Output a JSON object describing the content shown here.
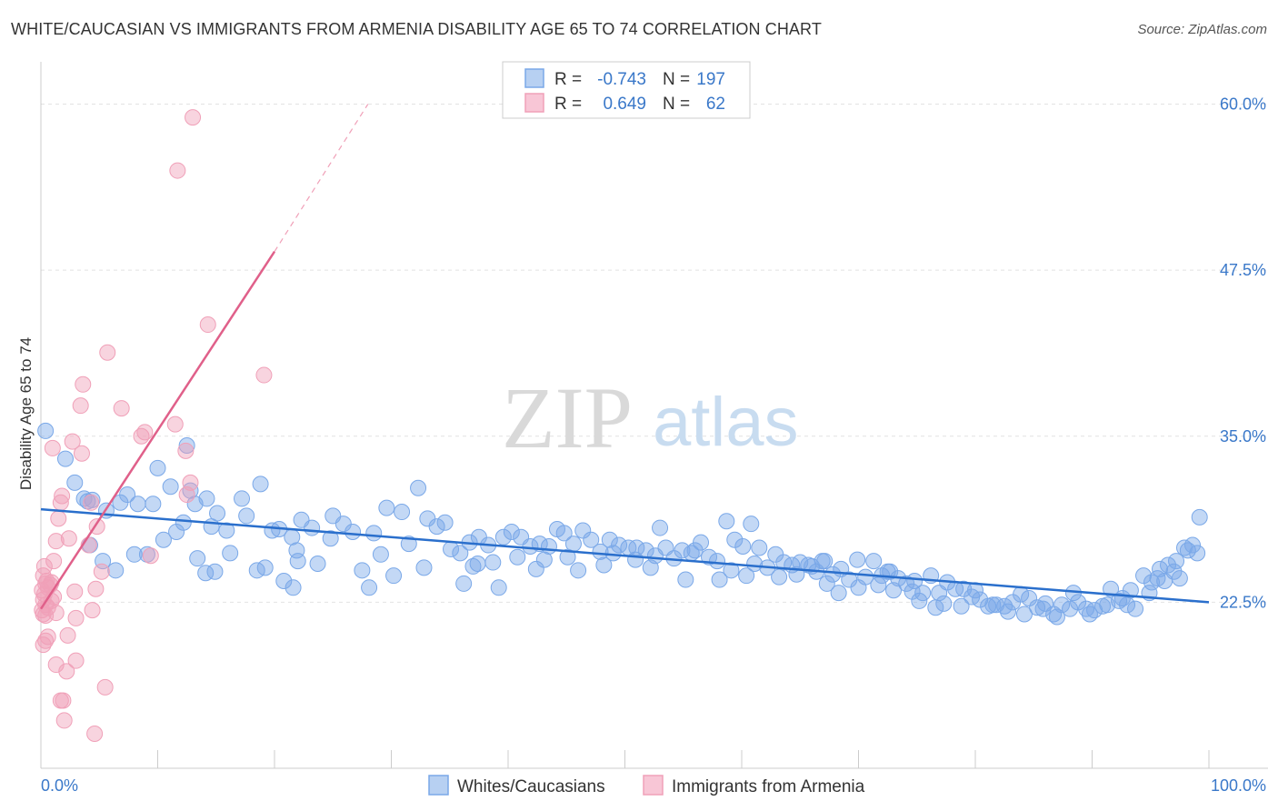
{
  "header": {
    "title": "WHITE/CAUCASIAN VS IMMIGRANTS FROM ARMENIA DISABILITY AGE 65 TO 74 CORRELATION CHART",
    "source": "Source: ZipAtlas.com"
  },
  "watermark": {
    "zip": "ZIP",
    "atlas": "atlas"
  },
  "stats": {
    "r_label": "R =",
    "n_label": "N =",
    "rows": [
      {
        "series": "Whites/Caucasians",
        "r": "-0.743",
        "n": "197",
        "color": "#7aa8e8"
      },
      {
        "series": "Immigrants from Armenia",
        "r": "0.649",
        "n": "62",
        "color": "#f0a0b8"
      }
    ]
  },
  "chart_data": {
    "type": "scatter",
    "title": "WHITE/CAUCASIAN VS IMMIGRANTS FROM ARMENIA DISABILITY AGE 65 TO 74 CORRELATION CHART",
    "xlabel": "",
    "ylabel": "Disability Age 65 to 74",
    "xlim": [
      0,
      100
    ],
    "ylim": [
      10,
      62.5
    ],
    "x_tick_labels": [
      "0.0%",
      "100.0%"
    ],
    "y_ticks": [
      22.5,
      35.0,
      47.5,
      60.0
    ],
    "y_tick_labels": [
      "22.5%",
      "35.0%",
      "47.5%",
      "60.0%"
    ],
    "grid": true,
    "legend_position": "bottom",
    "series": [
      {
        "name": "Whites/Caucasians",
        "color": "#7aa8e8",
        "line_color": "#2a6fcc",
        "trend": {
          "x": [
            0,
            100
          ],
          "y": [
            29.5,
            22.5
          ]
        },
        "points": [
          [
            0.4,
            35.4
          ],
          [
            2.1,
            33.3
          ],
          [
            2.9,
            31.5
          ],
          [
            3.7,
            30.3
          ],
          [
            4.4,
            30.2
          ],
          [
            4.0,
            30.1
          ],
          [
            5.6,
            29.4
          ],
          [
            6.8,
            30.0
          ],
          [
            7.4,
            30.6
          ],
          [
            8.3,
            29.9
          ],
          [
            9.6,
            29.9
          ],
          [
            9.1,
            26.1
          ],
          [
            10.0,
            32.6
          ],
          [
            10.5,
            27.2
          ],
          [
            11.1,
            31.2
          ],
          [
            11.6,
            27.8
          ],
          [
            12.2,
            28.5
          ],
          [
            12.5,
            34.3
          ],
          [
            12.8,
            30.9
          ],
          [
            13.2,
            29.9
          ],
          [
            4.2,
            26.8
          ],
          [
            5.3,
            25.6
          ],
          [
            6.4,
            24.9
          ],
          [
            8.0,
            26.1
          ],
          [
            13.4,
            25.8
          ],
          [
            14.2,
            30.3
          ],
          [
            14.6,
            28.2
          ],
          [
            15.1,
            29.2
          ],
          [
            15.9,
            27.9
          ],
          [
            16.2,
            26.2
          ],
          [
            17.2,
            30.3
          ],
          [
            17.6,
            29.0
          ],
          [
            18.5,
            24.9
          ],
          [
            18.8,
            31.4
          ],
          [
            19.2,
            25.1
          ],
          [
            19.8,
            27.9
          ],
          [
            20.4,
            28.0
          ],
          [
            21.5,
            27.4
          ],
          [
            21.9,
            26.4
          ],
          [
            22.3,
            28.7
          ],
          [
            23.2,
            28.1
          ],
          [
            23.7,
            25.4
          ],
          [
            24.8,
            27.3
          ],
          [
            25.0,
            29.0
          ],
          [
            25.9,
            28.4
          ],
          [
            26.7,
            27.8
          ],
          [
            27.5,
            24.9
          ],
          [
            28.1,
            23.6
          ],
          [
            28.5,
            27.7
          ],
          [
            29.1,
            26.1
          ],
          [
            14.1,
            24.7
          ],
          [
            14.9,
            24.8
          ],
          [
            20.8,
            24.1
          ],
          [
            21.6,
            23.6
          ],
          [
            22.0,
            25.6
          ],
          [
            29.6,
            29.6
          ],
          [
            30.2,
            24.5
          ],
          [
            30.9,
            29.3
          ],
          [
            31.5,
            26.9
          ],
          [
            32.3,
            31.1
          ],
          [
            33.1,
            28.8
          ],
          [
            33.9,
            28.2
          ],
          [
            34.6,
            28.5
          ],
          [
            35.1,
            26.5
          ],
          [
            35.9,
            26.2
          ],
          [
            36.7,
            27.0
          ],
          [
            37.5,
            27.4
          ],
          [
            38.3,
            26.8
          ],
          [
            38.7,
            25.5
          ],
          [
            39.6,
            27.4
          ],
          [
            40.3,
            27.8
          ],
          [
            41.1,
            27.4
          ],
          [
            41.9,
            26.7
          ],
          [
            42.7,
            26.9
          ],
          [
            43.5,
            26.7
          ],
          [
            44.2,
            28.0
          ],
          [
            44.8,
            27.7
          ],
          [
            45.6,
            26.9
          ],
          [
            46.4,
            27.9
          ],
          [
            47.1,
            27.2
          ],
          [
            47.9,
            26.3
          ],
          [
            48.2,
            25.3
          ],
          [
            48.7,
            27.2
          ],
          [
            49.5,
            26.8
          ],
          [
            50.3,
            26.6
          ],
          [
            51.0,
            26.6
          ],
          [
            51.8,
            26.4
          ],
          [
            52.6,
            26.0
          ],
          [
            53.5,
            26.6
          ],
          [
            54.2,
            25.8
          ],
          [
            54.9,
            26.4
          ],
          [
            55.7,
            26.2
          ],
          [
            56.5,
            27.0
          ],
          [
            57.2,
            25.9
          ],
          [
            57.9,
            25.6
          ],
          [
            58.7,
            28.6
          ],
          [
            59.4,
            27.2
          ],
          [
            60.1,
            26.7
          ],
          [
            60.8,
            28.4
          ],
          [
            61.5,
            26.6
          ],
          [
            62.2,
            25.1
          ],
          [
            62.9,
            26.1
          ],
          [
            63.6,
            25.5
          ],
          [
            64.3,
            25.3
          ],
          [
            65.0,
            25.5
          ],
          [
            65.7,
            25.3
          ],
          [
            66.4,
            24.8
          ],
          [
            67.1,
            25.6
          ],
          [
            67.8,
            24.6
          ],
          [
            68.5,
            25.0
          ],
          [
            69.2,
            24.2
          ],
          [
            69.9,
            25.7
          ],
          [
            70.6,
            24.4
          ],
          [
            71.3,
            25.6
          ],
          [
            72.0,
            24.5
          ],
          [
            72.7,
            24.8
          ],
          [
            73.4,
            24.3
          ],
          [
            74.1,
            23.9
          ],
          [
            74.8,
            24.1
          ],
          [
            75.5,
            23.2
          ],
          [
            76.2,
            24.5
          ],
          [
            76.9,
            23.2
          ],
          [
            77.6,
            24.0
          ],
          [
            78.3,
            23.5
          ],
          [
            79.0,
            23.5
          ],
          [
            79.7,
            22.9
          ],
          [
            80.4,
            22.7
          ],
          [
            81.1,
            22.2
          ],
          [
            81.8,
            22.3
          ],
          [
            82.5,
            22.2
          ],
          [
            83.2,
            22.5
          ],
          [
            83.9,
            23.1
          ],
          [
            84.6,
            22.8
          ],
          [
            85.3,
            22.1
          ],
          [
            86.0,
            22.4
          ],
          [
            86.7,
            21.6
          ],
          [
            87.4,
            22.3
          ],
          [
            88.1,
            22.0
          ],
          [
            88.8,
            22.5
          ],
          [
            89.5,
            22.0
          ],
          [
            90.2,
            21.9
          ],
          [
            90.9,
            22.2
          ],
          [
            91.6,
            23.5
          ],
          [
            92.3,
            22.6
          ],
          [
            93.0,
            22.3
          ],
          [
            93.7,
            22.0
          ],
          [
            94.4,
            24.5
          ],
          [
            95.1,
            24.0
          ],
          [
            95.8,
            25.0
          ],
          [
            96.5,
            25.3
          ],
          [
            97.2,
            25.6
          ],
          [
            97.9,
            26.6
          ],
          [
            98.6,
            26.8
          ],
          [
            99.2,
            28.9
          ],
          [
            32.8,
            25.1
          ],
          [
            36.2,
            23.9
          ],
          [
            37.0,
            25.2
          ],
          [
            39.2,
            23.6
          ],
          [
            40.8,
            25.9
          ],
          [
            42.4,
            25.0
          ],
          [
            45.1,
            25.9
          ],
          [
            46.0,
            24.9
          ],
          [
            50.9,
            25.7
          ],
          [
            52.2,
            25.1
          ],
          [
            53.0,
            28.1
          ],
          [
            55.2,
            24.2
          ],
          [
            58.1,
            24.2
          ],
          [
            59.1,
            24.9
          ],
          [
            61.1,
            25.4
          ],
          [
            63.2,
            24.4
          ],
          [
            64.7,
            24.6
          ],
          [
            66.0,
            25.2
          ],
          [
            67.3,
            23.9
          ],
          [
            68.3,
            23.2
          ],
          [
            70.0,
            23.6
          ],
          [
            71.7,
            23.8
          ],
          [
            73.0,
            23.4
          ],
          [
            74.6,
            23.3
          ],
          [
            75.2,
            22.6
          ],
          [
            76.6,
            22.1
          ],
          [
            77.3,
            22.4
          ],
          [
            78.8,
            22.2
          ],
          [
            80.0,
            23.4
          ],
          [
            81.5,
            22.3
          ],
          [
            82.8,
            21.8
          ],
          [
            84.2,
            21.6
          ],
          [
            85.8,
            22.0
          ],
          [
            87.0,
            21.4
          ],
          [
            88.4,
            23.2
          ],
          [
            89.8,
            21.6
          ],
          [
            91.3,
            22.3
          ],
          [
            92.6,
            22.8
          ],
          [
            93.3,
            23.4
          ],
          [
            94.9,
            23.2
          ],
          [
            95.6,
            24.3
          ],
          [
            96.2,
            24.1
          ],
          [
            97.5,
            24.3
          ],
          [
            97.0,
            24.8
          ],
          [
            98.2,
            26.4
          ],
          [
            99.0,
            26.2
          ],
          [
            37.4,
            25.4
          ],
          [
            43.1,
            25.7
          ],
          [
            49.0,
            26.2
          ],
          [
            56.0,
            26.4
          ],
          [
            60.4,
            24.5
          ],
          [
            66.9,
            25.6
          ],
          [
            72.5,
            24.8
          ]
        ]
      },
      {
        "name": "Immigrants from Armenia",
        "color": "#f0a0b8",
        "line_color": "#e0608a",
        "trend": {
          "x": [
            0,
            20
          ],
          "y": [
            22.0,
            48.9
          ]
        },
        "trend_extension": {
          "x": [
            20,
            28
          ],
          "y": [
            48.9,
            60.0
          ]
        },
        "points": [
          [
            13.0,
            59.0
          ],
          [
            11.7,
            55.0
          ],
          [
            14.3,
            43.4
          ],
          [
            5.7,
            41.3
          ],
          [
            19.1,
            39.6
          ],
          [
            3.6,
            38.9
          ],
          [
            3.4,
            37.3
          ],
          [
            6.9,
            37.1
          ],
          [
            8.9,
            35.3
          ],
          [
            11.5,
            35.9
          ],
          [
            8.6,
            35.0
          ],
          [
            2.7,
            34.6
          ],
          [
            1.0,
            34.1
          ],
          [
            3.5,
            33.7
          ],
          [
            12.4,
            33.9
          ],
          [
            12.8,
            31.5
          ],
          [
            12.5,
            30.6
          ],
          [
            1.8,
            30.5
          ],
          [
            1.7,
            30.0
          ],
          [
            4.3,
            30.0
          ],
          [
            1.5,
            28.8
          ],
          [
            4.8,
            28.2
          ],
          [
            2.4,
            27.3
          ],
          [
            1.3,
            27.1
          ],
          [
            4.1,
            26.8
          ],
          [
            9.4,
            26.0
          ],
          [
            1.1,
            25.6
          ],
          [
            0.3,
            25.2
          ],
          [
            0.2,
            24.5
          ],
          [
            0.5,
            24.1
          ],
          [
            0.9,
            24.0
          ],
          [
            0.6,
            23.6
          ],
          [
            0.4,
            23.9
          ],
          [
            5.2,
            24.8
          ],
          [
            0.1,
            23.4
          ],
          [
            0.3,
            23.1
          ],
          [
            0.2,
            22.7
          ],
          [
            1.1,
            22.9
          ],
          [
            0.9,
            22.6
          ],
          [
            0.4,
            22.3
          ],
          [
            0.6,
            22.1
          ],
          [
            2.9,
            23.3
          ],
          [
            4.7,
            23.5
          ],
          [
            0.1,
            21.9
          ],
          [
            0.2,
            21.6
          ],
          [
            0.4,
            21.5
          ],
          [
            1.3,
            21.7
          ],
          [
            3.0,
            21.3
          ],
          [
            4.4,
            21.9
          ],
          [
            2.3,
            20.0
          ],
          [
            0.6,
            19.9
          ],
          [
            0.4,
            19.6
          ],
          [
            0.2,
            19.3
          ],
          [
            3.0,
            18.1
          ],
          [
            1.3,
            17.8
          ],
          [
            2.2,
            17.3
          ],
          [
            5.5,
            16.1
          ],
          [
            1.7,
            15.1
          ],
          [
            1.9,
            15.1
          ],
          [
            2.0,
            13.6
          ],
          [
            4.6,
            12.6
          ],
          [
            0.8,
            23.8
          ]
        ]
      }
    ]
  },
  "legend": {
    "items": [
      {
        "label": "Whites/Caucasians",
        "color": "#7aa8e8"
      },
      {
        "label": "Immigrants from Armenia",
        "color": "#f0a0b8"
      }
    ]
  }
}
